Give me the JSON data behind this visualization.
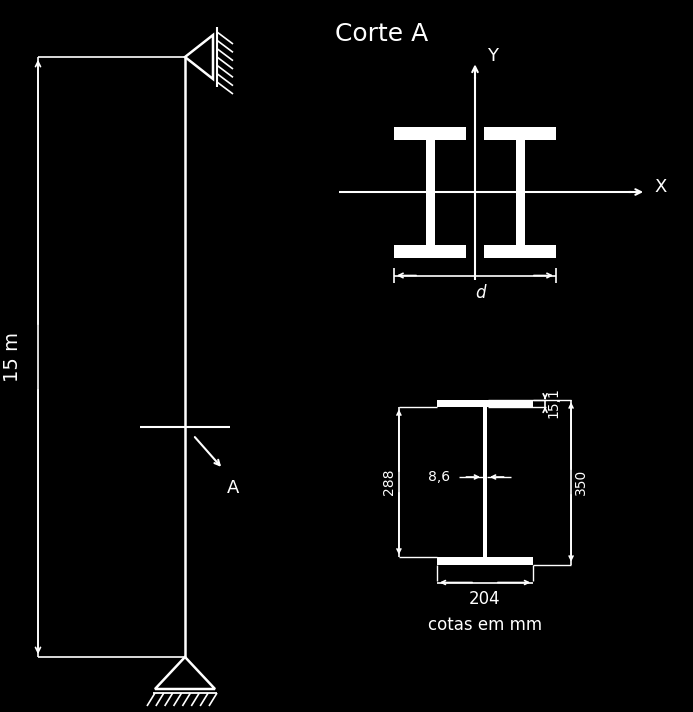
{
  "bg_color": "#000000",
  "fg_color": "white",
  "title_corte": "Corte A",
  "label_x": "X",
  "label_y": "Y",
  "label_15m": "15 m",
  "label_A": "A",
  "label_d": "d",
  "dim_151": "15,1",
  "dim_288": "288",
  "dim_86": "8,6",
  "dim_350": "350",
  "dim_204": "204",
  "label_cotas": "cotas em mm",
  "lw": 1.8
}
